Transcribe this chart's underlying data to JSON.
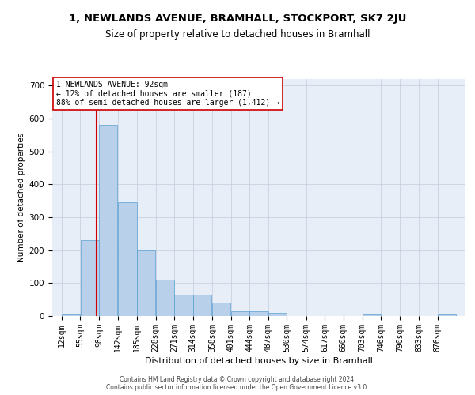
{
  "title1": "1, NEWLANDS AVENUE, BRAMHALL, STOCKPORT, SK7 2JU",
  "title2": "Size of property relative to detached houses in Bramhall",
  "xlabel": "Distribution of detached houses by size in Bramhall",
  "ylabel": "Number of detached properties",
  "bin_labels": [
    "12sqm",
    "55sqm",
    "98sqm",
    "142sqm",
    "185sqm",
    "228sqm",
    "271sqm",
    "314sqm",
    "358sqm",
    "401sqm",
    "444sqm",
    "487sqm",
    "530sqm",
    "574sqm",
    "617sqm",
    "660sqm",
    "703sqm",
    "746sqm",
    "790sqm",
    "833sqm",
    "876sqm"
  ],
  "bin_edges": [
    12,
    55,
    98,
    142,
    185,
    228,
    271,
    314,
    358,
    401,
    444,
    487,
    530,
    574,
    617,
    660,
    703,
    746,
    790,
    833,
    876
  ],
  "bar_heights": [
    5,
    230,
    580,
    345,
    200,
    110,
    65,
    65,
    40,
    15,
    15,
    10,
    0,
    0,
    0,
    0,
    5,
    0,
    0,
    0,
    5
  ],
  "bar_color": "#b8d0ea",
  "bar_edge_color": "#5a9fd4",
  "property_size": 92,
  "vline_color": "#cc0000",
  "annotation_text": "1 NEWLANDS AVENUE: 92sqm\n← 12% of detached houses are smaller (187)\n88% of semi-detached houses are larger (1,412) →",
  "annotation_box_color": "#ffffff",
  "annotation_box_edge": "#cc0000",
  "footer1": "Contains HM Land Registry data © Crown copyright and database right 2024.",
  "footer2": "Contains public sector information licensed under the Open Government Licence v3.0.",
  "background_color": "#e8eef8",
  "ylim": [
    0,
    720
  ],
  "yticks": [
    0,
    100,
    200,
    300,
    400,
    500,
    600,
    700
  ],
  "title1_fontsize": 9.5,
  "title2_fontsize": 8.5,
  "xlabel_fontsize": 8,
  "ylabel_fontsize": 7.5,
  "tick_fontsize": 7,
  "annotation_fontsize": 7,
  "footer_fontsize": 5.5
}
